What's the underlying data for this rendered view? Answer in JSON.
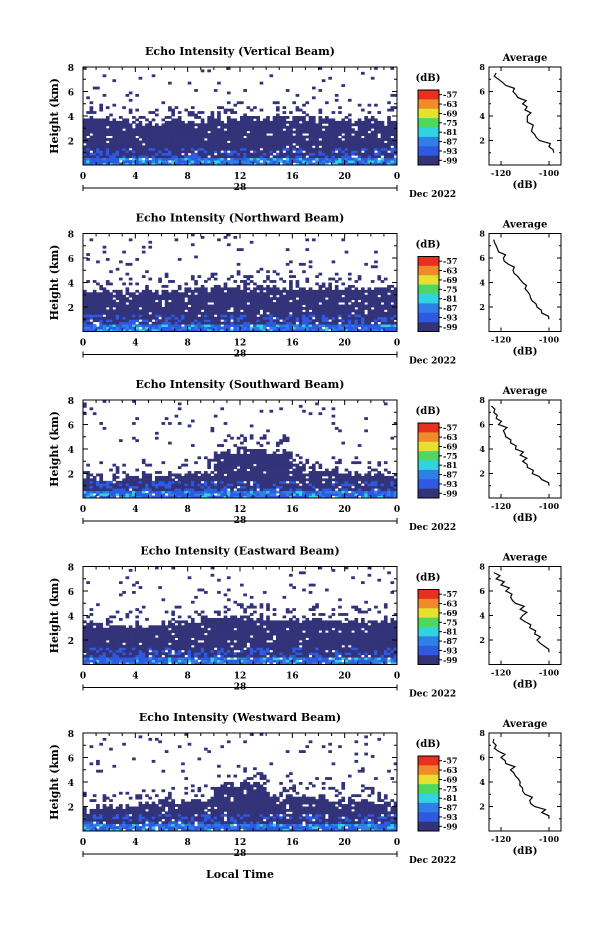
{
  "figure": {
    "xlabel_bottom": "Local Time",
    "colorbar_unit": "(dB)",
    "colorbar_ticks": [
      "-57",
      "-63",
      "-69",
      "-75",
      "-81",
      "-87",
      "-93",
      "-99"
    ],
    "colors": {
      "deep": "#33337a",
      "blue": "#2d5ae0",
      "mid_blue": "#2f7fe6",
      "cyan": "#2fd4e0",
      "green": "#4fd860",
      "yellow": "#e8e030",
      "orange": "#f08a2a",
      "red": "#e83020"
    }
  },
  "chart_data": [
    {
      "type": "heatmap",
      "title": "Echo Intensity (Vertical Beam)",
      "ylabel": "Height (km)",
      "xlim": [
        0,
        24
      ],
      "ylim": [
        0,
        8
      ],
      "xticks": [
        "0",
        "4",
        "8",
        "12",
        "16",
        "20",
        "0"
      ],
      "date_label": "Dec 2022",
      "day_label": "28",
      "echo_top_km": [
        3.8,
        3.9,
        3.7,
        3.6,
        3.5,
        3.4,
        3.5,
        3.6,
        3.5,
        3.6,
        3.8,
        3.9,
        3.9,
        3.8,
        3.7,
        3.8,
        3.9,
        3.8,
        3.7,
        3.6,
        3.7,
        3.8,
        3.7,
        3.7
      ],
      "average_profile": {
        "title": "Average",
        "xlabel": "(dB)",
        "xticks": [
          "-120",
          "-100"
        ],
        "xlim": [
          -125,
          -95
        ],
        "ylim": [
          0,
          8
        ],
        "height_km": [
          1.0,
          1.5,
          2.0,
          2.5,
          3.0,
          3.5,
          4.0,
          4.5,
          5.0,
          5.5,
          6.0,
          6.5,
          7.0,
          7.5
        ],
        "db": [
          -98,
          -100,
          -104,
          -106,
          -107,
          -109,
          -109,
          -110,
          -111,
          -113,
          -115,
          -118,
          -121,
          -122
        ]
      }
    },
    {
      "type": "heatmap",
      "title": "Echo Intensity (Northward Beam)",
      "ylabel": "Height (km)",
      "xlim": [
        0,
        24
      ],
      "ylim": [
        0,
        8
      ],
      "xticks": [
        "0",
        "4",
        "8",
        "12",
        "16",
        "20",
        "0"
      ],
      "date_label": "Dec 2022",
      "day_label": "28",
      "echo_top_km": [
        3.3,
        3.2,
        3.1,
        3.0,
        3.2,
        3.3,
        3.2,
        3.4,
        3.5,
        3.6,
        3.7,
        3.6,
        3.5,
        3.6,
        3.7,
        3.6,
        3.5,
        3.6,
        3.7,
        3.5,
        3.6,
        3.5,
        3.4,
        3.5
      ],
      "average_profile": {
        "title": "Average",
        "xlabel": "(dB)",
        "xticks": [
          "-120",
          "-100"
        ],
        "xlim": [
          -125,
          -95
        ],
        "ylim": [
          0,
          8
        ],
        "height_km": [
          1.0,
          1.5,
          2.0,
          2.5,
          3.0,
          3.5,
          4.0,
          4.5,
          5.0,
          5.5,
          6.0,
          6.5,
          7.0,
          7.5
        ],
        "db": [
          -100,
          -103,
          -105,
          -107,
          -108,
          -110,
          -111,
          -113,
          -115,
          -117,
          -119,
          -121,
          -122,
          -123
        ]
      }
    },
    {
      "type": "heatmap",
      "title": "Echo Intensity (Southward Beam)",
      "ylabel": "Height (km)",
      "xlim": [
        0,
        24
      ],
      "ylim": [
        0,
        8
      ],
      "xticks": [
        "0",
        "4",
        "8",
        "12",
        "16",
        "20",
        "0"
      ],
      "date_label": "Dec 2022",
      "day_label": "28",
      "echo_top_km": [
        1.5,
        1.6,
        1.5,
        1.6,
        1.8,
        1.7,
        1.8,
        1.9,
        2.0,
        2.0,
        3.8,
        3.9,
        3.8,
        3.8,
        3.7,
        3.8,
        2.5,
        2.2,
        2.1,
        2.0,
        2.1,
        1.9,
        1.8,
        1.7
      ],
      "average_profile": {
        "title": "Average",
        "xlabel": "(dB)",
        "xticks": [
          "-120",
          "-100"
        ],
        "xlim": [
          -125,
          -95
        ],
        "ylim": [
          0,
          8
        ],
        "height_km": [
          1.0,
          1.5,
          2.0,
          2.5,
          3.0,
          3.5,
          4.0,
          4.5,
          5.0,
          5.5,
          6.0,
          6.5,
          7.0,
          7.5
        ],
        "db": [
          -100,
          -103,
          -107,
          -109,
          -111,
          -112,
          -114,
          -116,
          -118,
          -119,
          -121,
          -122,
          -123,
          -124
        ]
      }
    },
    {
      "type": "heatmap",
      "title": "Echo Intensity (Eastward Beam)",
      "ylabel": "Height (km)",
      "xlim": [
        0,
        24
      ],
      "ylim": [
        0,
        8
      ],
      "xticks": [
        "0",
        "4",
        "8",
        "12",
        "16",
        "20",
        "0"
      ],
      "date_label": "Dec 2022",
      "day_label": "28",
      "echo_top_km": [
        3.4,
        3.2,
        3.1,
        3.0,
        3.2,
        3.3,
        3.4,
        3.5,
        3.6,
        3.7,
        3.8,
        3.9,
        3.8,
        3.8,
        3.7,
        3.6,
        3.5,
        3.6,
        3.7,
        3.6,
        3.7,
        3.6,
        3.5,
        3.6
      ],
      "average_profile": {
        "title": "Average",
        "xlabel": "(dB)",
        "xticks": [
          "-120",
          "-100"
        ],
        "xlim": [
          -125,
          -95
        ],
        "ylim": [
          0,
          8
        ],
        "height_km": [
          1.0,
          1.5,
          2.0,
          2.5,
          3.0,
          3.5,
          4.0,
          4.5,
          5.0,
          5.5,
          6.0,
          6.5,
          7.0,
          7.5
        ],
        "db": [
          -100,
          -102,
          -105,
          -106,
          -108,
          -110,
          -111,
          -112,
          -114,
          -116,
          -118,
          -120,
          -122,
          -123
        ]
      }
    },
    {
      "type": "heatmap",
      "title": "Echo Intensity (Westward Beam)",
      "ylabel": "Height (km)",
      "xlim": [
        0,
        24
      ],
      "ylim": [
        0,
        8
      ],
      "xticks": [
        "0",
        "4",
        "8",
        "12",
        "16",
        "20",
        "0"
      ],
      "date_label": "Dec 2022",
      "day_label": "28",
      "echo_top_km": [
        1.8,
        1.9,
        2.0,
        2.1,
        2.2,
        2.3,
        2.4,
        2.4,
        2.5,
        2.6,
        3.7,
        3.8,
        3.8,
        3.7,
        3.0,
        2.9,
        2.8,
        2.7,
        2.8,
        2.6,
        2.5,
        2.4,
        2.3,
        2.2
      ],
      "average_profile": {
        "title": "Average",
        "xlabel": "(dB)",
        "xticks": [
          "-120",
          "-100"
        ],
        "xlim": [
          -125,
          -95
        ],
        "ylim": [
          0,
          8
        ],
        "height_km": [
          1.0,
          1.5,
          2.0,
          2.5,
          3.0,
          3.5,
          4.0,
          4.5,
          5.0,
          5.5,
          6.0,
          6.5,
          7.0,
          7.5
        ],
        "db": [
          -100,
          -103,
          -106,
          -108,
          -110,
          -111,
          -112,
          -114,
          -116,
          -118,
          -120,
          -121,
          -122,
          -123
        ]
      }
    }
  ]
}
